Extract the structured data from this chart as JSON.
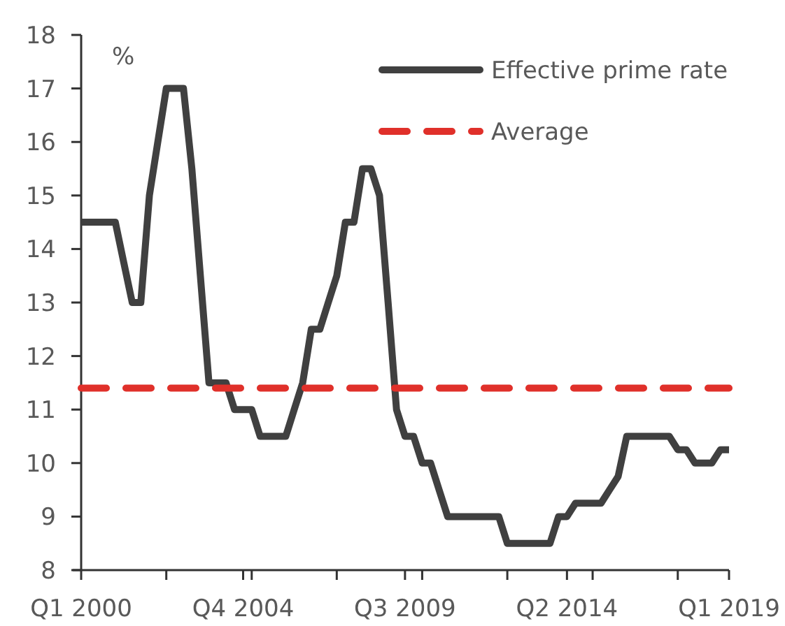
{
  "chart_data": {
    "type": "line",
    "ylabel": "%",
    "x": [
      "2000-01",
      "2000-04",
      "2000-07",
      "2000-10",
      "2001-01",
      "2001-04",
      "2001-07",
      "2001-10",
      "2002-01",
      "2002-04",
      "2002-07",
      "2002-10",
      "2003-01",
      "2003-04",
      "2003-07",
      "2003-10",
      "2004-01",
      "2004-04",
      "2004-07",
      "2004-10",
      "2005-01",
      "2005-04",
      "2005-07",
      "2005-10",
      "2006-01",
      "2006-04",
      "2006-07",
      "2006-10",
      "2007-01",
      "2007-04",
      "2007-07",
      "2007-10",
      "2008-01",
      "2008-04",
      "2008-07",
      "2008-10",
      "2009-01",
      "2009-04",
      "2009-07",
      "2009-10",
      "2010-01",
      "2010-04",
      "2010-07",
      "2010-10",
      "2011-01",
      "2011-04",
      "2011-07",
      "2011-10",
      "2012-01",
      "2012-04",
      "2012-07",
      "2012-10",
      "2013-01",
      "2013-04",
      "2013-07",
      "2013-10",
      "2014-01",
      "2014-04",
      "2014-07",
      "2014-10",
      "2015-01",
      "2015-04",
      "2015-07",
      "2015-10",
      "2016-01",
      "2016-04",
      "2016-07",
      "2016-10",
      "2017-01",
      "2017-04",
      "2017-07",
      "2017-10",
      "2018-01",
      "2018-04",
      "2018-07",
      "2018-10",
      "2019-01"
    ],
    "series": [
      {
        "name": "Effective prime rate",
        "color": "#404040",
        "line_style": "solid",
        "values": [
          14.5,
          14.5,
          14.5,
          14.5,
          14.5,
          13.75,
          13,
          13,
          15,
          16,
          17,
          17,
          17,
          15.5,
          13.5,
          11.5,
          11.5,
          11.5,
          11,
          11,
          11,
          10.5,
          10.5,
          10.5,
          10.5,
          11,
          11.5,
          12.5,
          12.5,
          13,
          13.5,
          14.5,
          14.5,
          15.5,
          15.5,
          15,
          13,
          11,
          10.5,
          10.5,
          10,
          10,
          9.5,
          9,
          9,
          9,
          9,
          9,
          9,
          9,
          8.5,
          8.5,
          8.5,
          8.5,
          8.5,
          8.5,
          9,
          9,
          9.25,
          9.25,
          9.25,
          9.25,
          9.5,
          9.75,
          10.5,
          10.5,
          10.5,
          10.5,
          10.5,
          10.5,
          10.25,
          10.25,
          10,
          10,
          10,
          10.25,
          10.25
        ]
      },
      {
        "name": "Average",
        "color": "#e0302a",
        "line_style": "dashed",
        "values": [
          11.4,
          11.4,
          11.4,
          11.4,
          11.4,
          11.4,
          11.4,
          11.4,
          11.4,
          11.4,
          11.4,
          11.4,
          11.4,
          11.4,
          11.4,
          11.4,
          11.4,
          11.4,
          11.4,
          11.4,
          11.4,
          11.4,
          11.4,
          11.4,
          11.4,
          11.4,
          11.4,
          11.4,
          11.4,
          11.4,
          11.4,
          11.4,
          11.4,
          11.4,
          11.4,
          11.4,
          11.4,
          11.4,
          11.4,
          11.4,
          11.4,
          11.4,
          11.4,
          11.4,
          11.4,
          11.4,
          11.4,
          11.4,
          11.4,
          11.4,
          11.4,
          11.4,
          11.4,
          11.4,
          11.4,
          11.4,
          11.4,
          11.4,
          11.4,
          11.4,
          11.4,
          11.4,
          11.4,
          11.4,
          11.4,
          11.4,
          11.4,
          11.4,
          11.4,
          11.4,
          11.4,
          11.4,
          11.4,
          11.4,
          11.4,
          11.4,
          11.4
        ]
      }
    ],
    "xlim": [
      "2000-01",
      "2019-01"
    ],
    "xticks": [
      {
        "value": "2000-01",
        "label": "Q1 2000"
      },
      {
        "value": "2002-07",
        "label": null
      },
      {
        "value": "2004-10",
        "label": "Q4 2004"
      },
      {
        "value": "2005-01",
        "label": null
      },
      {
        "value": "2007-07",
        "label": null
      },
      {
        "value": "2009-07",
        "label": "Q3 2009"
      },
      {
        "value": "2010-01",
        "label": null
      },
      {
        "value": "2012-07",
        "label": null
      },
      {
        "value": "2014-04",
        "label": "Q2 2014"
      },
      {
        "value": "2015-01",
        "label": null
      },
      {
        "value": "2017-07",
        "label": null
      },
      {
        "value": "2019-01",
        "label": "Q1 2019"
      }
    ],
    "ylim": [
      8,
      18
    ],
    "yticks": [
      8,
      9,
      10,
      11,
      12,
      13,
      14,
      15,
      16,
      17,
      18
    ],
    "grid": false,
    "legend": "top right"
  }
}
